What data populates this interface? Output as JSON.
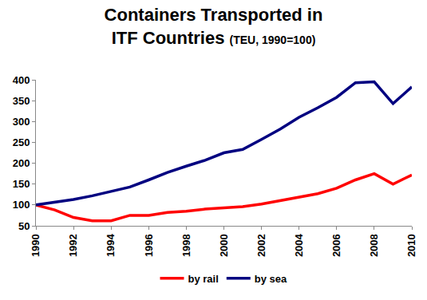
{
  "chart_data": {
    "type": "line",
    "title": "Containers Transported in ITF Countries",
    "subtitle": "(TEU, 1990=100)",
    "x": [
      1990,
      1991,
      1992,
      1993,
      1994,
      1995,
      1996,
      1997,
      1998,
      1999,
      2000,
      2001,
      2002,
      2003,
      2004,
      2005,
      2006,
      2007,
      2008,
      2009,
      2010
    ],
    "series": [
      {
        "name": "by rail",
        "color": "#ff0000",
        "values": [
          100,
          88,
          70,
          62,
          62,
          75,
          75,
          82,
          85,
          90,
          93,
          96,
          102,
          110,
          118,
          127,
          140,
          160,
          175,
          150,
          172
        ]
      },
      {
        "name": "by sea",
        "color": "#000080",
        "values": [
          100,
          106,
          113,
          122,
          132,
          143,
          160,
          178,
          193,
          207,
          225,
          233,
          257,
          282,
          310,
          333,
          358,
          393,
          395,
          343,
          383
        ]
      }
    ],
    "xlim": [
      1990,
      2010
    ],
    "xticks": [
      1990,
      1992,
      1994,
      1996,
      1998,
      2000,
      2002,
      2004,
      2006,
      2008,
      2010
    ],
    "ylim": [
      50,
      400
    ],
    "yticks": [
      50,
      100,
      150,
      200,
      250,
      300,
      350,
      400
    ],
    "grid": false,
    "legend": "bottom"
  }
}
